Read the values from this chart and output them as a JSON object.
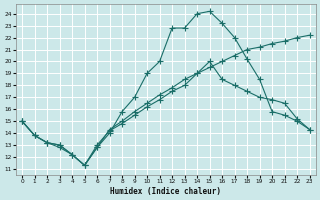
{
  "xlabel": "Humidex (Indice chaleur)",
  "xlim": [
    -0.5,
    23.5
  ],
  "ylim": [
    10.5,
    24.8
  ],
  "xticks": [
    0,
    1,
    2,
    3,
    4,
    5,
    6,
    7,
    8,
    9,
    10,
    11,
    12,
    13,
    14,
    15,
    16,
    17,
    18,
    19,
    20,
    21,
    22,
    23
  ],
  "yticks": [
    11,
    12,
    13,
    14,
    15,
    16,
    17,
    18,
    19,
    20,
    21,
    22,
    23,
    24
  ],
  "bg_color": "#cce8e9",
  "grid_color": "#ffffff",
  "line_color": "#1a6e68",
  "line1_x": [
    0,
    1,
    2,
    3,
    4,
    5,
    6,
    7,
    8,
    9,
    10,
    11,
    12,
    13,
    14,
    15,
    16,
    17,
    18,
    19,
    20,
    21,
    22,
    23
  ],
  "line1_y": [
    15,
    13.8,
    13.2,
    13.0,
    12.2,
    11.3,
    12.8,
    14.3,
    15.0,
    15.8,
    16.5,
    17.2,
    17.8,
    18.5,
    19.0,
    19.5,
    20.0,
    20.5,
    21.0,
    21.2,
    21.5,
    21.7,
    22.0,
    22.2
  ],
  "line2_x": [
    0,
    1,
    2,
    3,
    4,
    5,
    6,
    7,
    8,
    9,
    10,
    11,
    12,
    13,
    14,
    15,
    16,
    17,
    18,
    19,
    20,
    21,
    22,
    23
  ],
  "line2_y": [
    15,
    13.8,
    13.2,
    12.8,
    12.2,
    11.3,
    12.8,
    14.0,
    15.8,
    17.0,
    19.0,
    20.0,
    22.8,
    22.8,
    24.0,
    24.2,
    23.2,
    22.0,
    20.2,
    18.5,
    15.8,
    15.5,
    15.0,
    14.3
  ],
  "line3_x": [
    0,
    1,
    2,
    3,
    4,
    5,
    6,
    7,
    8,
    9,
    10,
    11,
    12,
    13,
    14,
    15,
    16,
    17,
    18,
    19,
    20,
    21,
    22,
    23
  ],
  "line3_y": [
    15,
    13.8,
    13.2,
    13.0,
    12.2,
    11.3,
    13.0,
    14.2,
    14.8,
    15.5,
    16.2,
    16.8,
    17.5,
    18.0,
    19.0,
    20.0,
    18.5,
    18.0,
    17.5,
    17.0,
    16.8,
    16.5,
    15.2,
    14.3
  ]
}
